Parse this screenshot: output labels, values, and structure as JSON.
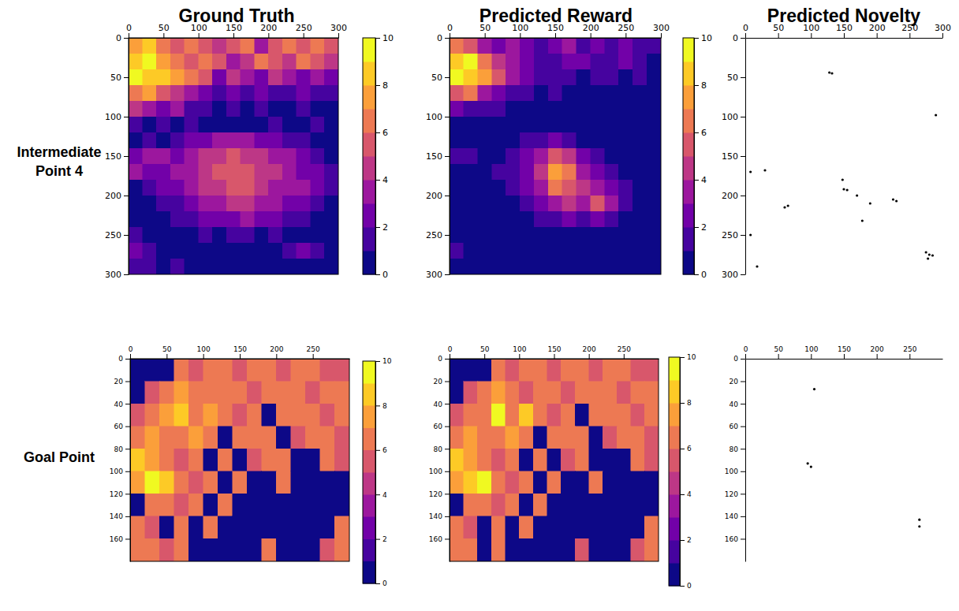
{
  "column_titles": [
    "Ground Truth",
    "Predicted Reward",
    "Predicted Novelty"
  ],
  "row_labels": [
    "Intermediate Point 4",
    "Goal Point"
  ],
  "chart_data": [
    {
      "type": "heatmap",
      "xlim": [
        0,
        300
      ],
      "ylim": [
        300,
        0
      ],
      "xticks": [
        0,
        50,
        100,
        150,
        200,
        250,
        300
      ],
      "yticks": [
        0,
        50,
        100,
        150,
        200,
        250,
        300
      ],
      "colorbar": {
        "range": [
          0,
          10
        ],
        "ticks": [
          0,
          2,
          4,
          6,
          8,
          10
        ]
      },
      "cells": [
        [
          7,
          8,
          6,
          5,
          6,
          5,
          4,
          5,
          6,
          3,
          5,
          6,
          5,
          6,
          5
        ],
        [
          8,
          9,
          7,
          6,
          5,
          6,
          5,
          3,
          4,
          6,
          5,
          4,
          6,
          5,
          4
        ],
        [
          9,
          8,
          8,
          7,
          6,
          5,
          2,
          4,
          3,
          2,
          4,
          3,
          2,
          3,
          2
        ],
        [
          6,
          7,
          5,
          4,
          3,
          2,
          1,
          2,
          1,
          2,
          1,
          1,
          2,
          1,
          1
        ],
        [
          4,
          3,
          2,
          3,
          1,
          1,
          0,
          1,
          0,
          1,
          0,
          0,
          1,
          0,
          0
        ],
        [
          1,
          0,
          1,
          0,
          1,
          0,
          0,
          0,
          0,
          0,
          1,
          0,
          0,
          1,
          0
        ],
        [
          0,
          1,
          0,
          1,
          2,
          2,
          3,
          3,
          3,
          2,
          2,
          1,
          1,
          0,
          0
        ],
        [
          2,
          3,
          3,
          2,
          3,
          4,
          4,
          5,
          4,
          4,
          3,
          3,
          2,
          1,
          0
        ],
        [
          3,
          2,
          2,
          3,
          3,
          4,
          5,
          5,
          5,
          4,
          4,
          3,
          2,
          2,
          1
        ],
        [
          0,
          1,
          2,
          2,
          3,
          4,
          4,
          5,
          5,
          4,
          3,
          3,
          3,
          2,
          1
        ],
        [
          0,
          0,
          1,
          1,
          2,
          3,
          3,
          4,
          4,
          3,
          3,
          2,
          2,
          1,
          0
        ],
        [
          0,
          0,
          0,
          1,
          1,
          2,
          2,
          2,
          3,
          2,
          2,
          1,
          1,
          0,
          0
        ],
        [
          1,
          0,
          0,
          0,
          0,
          1,
          0,
          1,
          1,
          0,
          1,
          0,
          0,
          0,
          0
        ],
        [
          2,
          1,
          0,
          0,
          0,
          0,
          0,
          0,
          0,
          0,
          0,
          1,
          2,
          1,
          0
        ],
        [
          1,
          1,
          0,
          1,
          0,
          0,
          0,
          0,
          0,
          0,
          0,
          0,
          0,
          0,
          0
        ]
      ]
    },
    {
      "type": "heatmap",
      "xlim": [
        0,
        300
      ],
      "ylim": [
        300,
        0
      ],
      "xticks": [
        0,
        50,
        100,
        150,
        200,
        250,
        300
      ],
      "yticks": [
        0,
        50,
        100,
        150,
        200,
        250,
        300
      ],
      "colorbar": {
        "range": [
          0,
          10
        ],
        "ticks": [
          0,
          2,
          4,
          6,
          8,
          10
        ]
      },
      "cells": [
        [
          6,
          5,
          3,
          2,
          3,
          2,
          1,
          2,
          3,
          1,
          2,
          1,
          2,
          1,
          1
        ],
        [
          8,
          9,
          6,
          4,
          3,
          2,
          1,
          1,
          2,
          2,
          1,
          1,
          2,
          1,
          0
        ],
        [
          9,
          8,
          7,
          5,
          3,
          2,
          1,
          1,
          1,
          0,
          1,
          1,
          0,
          1,
          0
        ],
        [
          5,
          6,
          3,
          2,
          1,
          1,
          0,
          1,
          0,
          0,
          0,
          0,
          0,
          0,
          0
        ],
        [
          2,
          1,
          1,
          1,
          0,
          0,
          0,
          0,
          0,
          0,
          0,
          0,
          0,
          0,
          0
        ],
        [
          0,
          0,
          0,
          0,
          0,
          0,
          0,
          0,
          0,
          0,
          0,
          0,
          0,
          0,
          0
        ],
        [
          0,
          0,
          0,
          0,
          0,
          1,
          1,
          2,
          1,
          0,
          0,
          0,
          0,
          0,
          0
        ],
        [
          1,
          1,
          0,
          0,
          1,
          2,
          3,
          5,
          4,
          2,
          1,
          0,
          0,
          0,
          0
        ],
        [
          0,
          0,
          0,
          1,
          1,
          2,
          4,
          7,
          6,
          3,
          2,
          1,
          0,
          0,
          0
        ],
        [
          0,
          0,
          0,
          0,
          1,
          2,
          3,
          6,
          5,
          4,
          3,
          2,
          1,
          0,
          0
        ],
        [
          0,
          0,
          0,
          0,
          0,
          1,
          2,
          3,
          4,
          3,
          5,
          3,
          1,
          0,
          0
        ],
        [
          0,
          0,
          0,
          0,
          0,
          0,
          1,
          1,
          2,
          1,
          2,
          1,
          0,
          0,
          0
        ],
        [
          0,
          0,
          0,
          0,
          0,
          0,
          0,
          0,
          0,
          0,
          0,
          0,
          0,
          0,
          0
        ],
        [
          1,
          0,
          0,
          0,
          0,
          0,
          0,
          0,
          0,
          0,
          0,
          0,
          0,
          0,
          0
        ],
        [
          0,
          0,
          0,
          0,
          0,
          0,
          0,
          0,
          0,
          0,
          0,
          0,
          0,
          0,
          0
        ]
      ]
    },
    {
      "type": "scatter",
      "xlim": [
        0,
        300
      ],
      "ylim": [
        300,
        0
      ],
      "xticks": [
        0,
        50,
        100,
        150,
        200,
        250,
        300
      ],
      "yticks": [
        0,
        50,
        100,
        150,
        200,
        250,
        300
      ],
      "color": "#000000",
      "marker": "point",
      "x": [
        128,
        132,
        290,
        8,
        30,
        148,
        150,
        155,
        170,
        60,
        65,
        190,
        225,
        230,
        178,
        8,
        18,
        280,
        285,
        278,
        275
      ],
      "y": [
        44,
        45,
        98,
        170,
        168,
        180,
        192,
        193,
        200,
        215,
        213,
        210,
        205,
        207,
        232,
        250,
        290,
        275,
        276,
        280,
        272
      ]
    },
    {
      "type": "heatmap",
      "xlim": [
        0,
        300
      ],
      "ylim": [
        180,
        0
      ],
      "xticks": [
        0,
        50,
        100,
        150,
        200,
        250
      ],
      "yticks": [
        0,
        20,
        40,
        60,
        80,
        100,
        120,
        140,
        160
      ],
      "colorbar": {
        "range": [
          0,
          10
        ],
        "ticks": [
          0,
          2,
          4,
          6,
          8,
          10
        ]
      },
      "cells": [
        [
          0,
          0,
          0,
          6,
          5,
          6,
          6,
          5,
          6,
          6,
          5,
          6,
          6,
          5,
          5
        ],
        [
          0,
          5,
          6,
          7,
          6,
          6,
          6,
          6,
          5,
          6,
          6,
          6,
          5,
          6,
          6
        ],
        [
          5,
          6,
          7,
          8,
          6,
          7,
          6,
          5,
          6,
          0,
          6,
          6,
          6,
          5,
          6
        ],
        [
          6,
          7,
          6,
          6,
          7,
          6,
          0,
          6,
          6,
          6,
          0,
          5,
          6,
          6,
          5
        ],
        [
          8,
          7,
          6,
          5,
          6,
          0,
          6,
          0,
          5,
          6,
          6,
          0,
          0,
          6,
          5
        ],
        [
          7,
          9,
          8,
          6,
          5,
          6,
          0,
          6,
          0,
          0,
          6,
          0,
          0,
          0,
          0
        ],
        [
          0,
          6,
          6,
          5,
          6,
          0,
          6,
          0,
          0,
          0,
          0,
          0,
          0,
          0,
          0
        ],
        [
          6,
          5,
          0,
          6,
          0,
          6,
          0,
          0,
          0,
          0,
          0,
          0,
          0,
          0,
          6
        ],
        [
          6,
          6,
          5,
          6,
          0,
          0,
          0,
          0,
          0,
          6,
          0,
          0,
          0,
          5,
          6
        ]
      ]
    },
    {
      "type": "heatmap",
      "xlim": [
        0,
        300
      ],
      "ylim": [
        180,
        0
      ],
      "xticks": [
        0,
        50,
        100,
        150,
        200,
        250
      ],
      "yticks": [
        0,
        20,
        40,
        60,
        80,
        100,
        120,
        140,
        160
      ],
      "colorbar": {
        "range": [
          0,
          10
        ],
        "ticks": [
          0,
          2,
          4,
          6,
          8,
          10
        ]
      },
      "cells": [
        [
          0,
          0,
          0,
          6,
          5,
          6,
          6,
          5,
          6,
          6,
          5,
          6,
          6,
          5,
          5
        ],
        [
          0,
          5,
          6,
          7,
          6,
          5,
          6,
          6,
          5,
          6,
          6,
          6,
          5,
          6,
          6
        ],
        [
          5,
          6,
          6,
          9,
          6,
          8,
          6,
          5,
          6,
          0,
          6,
          6,
          6,
          5,
          6
        ],
        [
          6,
          7,
          6,
          6,
          7,
          6,
          0,
          6,
          6,
          6,
          0,
          5,
          6,
          6,
          5
        ],
        [
          8,
          7,
          6,
          5,
          6,
          0,
          6,
          0,
          5,
          6,
          0,
          0,
          0,
          6,
          5
        ],
        [
          7,
          8,
          9,
          6,
          5,
          6,
          0,
          6,
          0,
          0,
          6,
          0,
          0,
          0,
          0
        ],
        [
          0,
          6,
          6,
          5,
          6,
          0,
          6,
          0,
          0,
          0,
          0,
          0,
          0,
          0,
          0
        ],
        [
          6,
          5,
          0,
          6,
          0,
          6,
          0,
          0,
          0,
          0,
          0,
          0,
          0,
          0,
          6
        ],
        [
          6,
          6,
          0,
          6,
          0,
          0,
          0,
          0,
          0,
          5,
          0,
          0,
          0,
          5,
          6
        ]
      ]
    },
    {
      "type": "scatter",
      "xlim": [
        0,
        300
      ],
      "ylim": [
        180,
        0
      ],
      "xticks": [
        0,
        50,
        100,
        150,
        200,
        250
      ],
      "yticks": [
        0,
        20,
        40,
        60,
        80,
        100,
        120,
        140,
        160
      ],
      "color": "#000000",
      "marker": "point",
      "x": [
        105,
        95,
        100,
        265,
        265
      ],
      "y": [
        27,
        93,
        96,
        143,
        149
      ]
    }
  ]
}
